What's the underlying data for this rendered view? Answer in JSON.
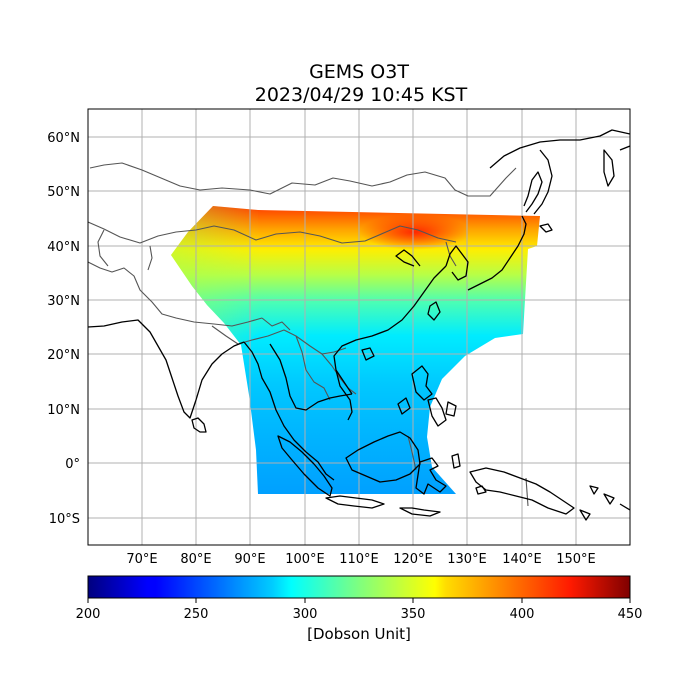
{
  "title": {
    "line1": "GEMS O3T",
    "line2": "2023/04/29 10:45 KST"
  },
  "map": {
    "lon_range": [
      60,
      160
    ],
    "lat_range": [
      -15,
      65
    ],
    "gridlines": true,
    "lon_ticks": [
      "70°E",
      "80°E",
      "90°E",
      "100°E",
      "110°E",
      "120°E",
      "130°E",
      "140°E",
      "150°E"
    ],
    "lat_ticks": [
      "60°N",
      "50°N",
      "40°N",
      "30°N",
      "20°N",
      "10°N",
      "0°",
      "10°S"
    ]
  },
  "colorbar": {
    "min": 200,
    "max": 450,
    "colormap": "jet",
    "ticks": [
      "200",
      "250",
      "300",
      "350",
      "400",
      "450"
    ],
    "label": "[Dobson Unit]"
  },
  "colors": {
    "coastline": "#000000",
    "borders": "#555555",
    "grid": "#b0b0b0"
  }
}
